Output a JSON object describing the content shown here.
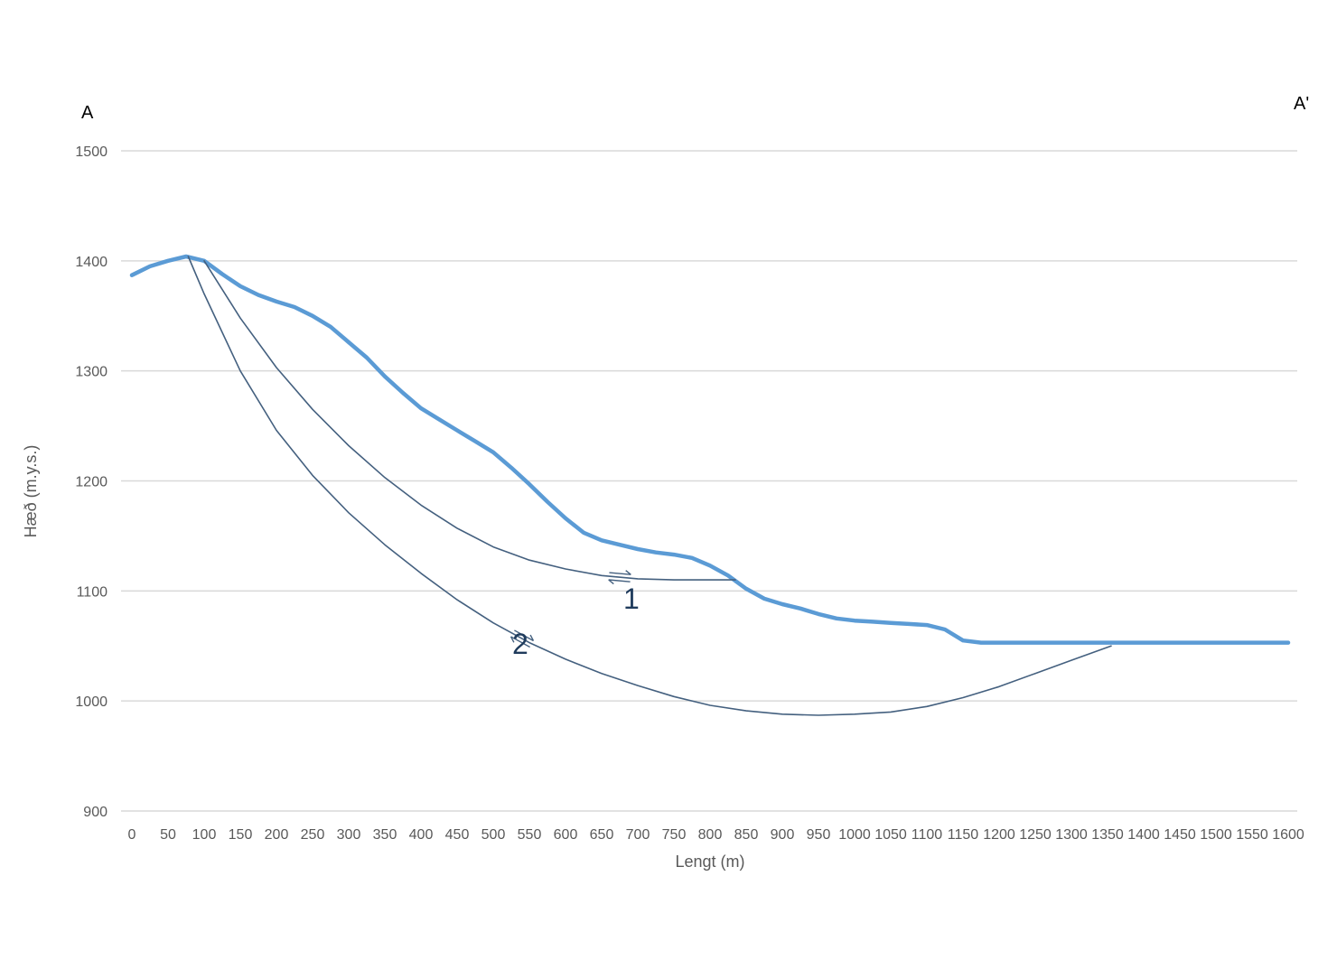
{
  "chart_data": {
    "type": "line",
    "xlabel": "Lengt (m)",
    "ylabel": "Hæð (m.y.s.)",
    "xlim": [
      0,
      1600
    ],
    "ylim": [
      900,
      1500
    ],
    "x_ticks": [
      "0",
      "50",
      "100",
      "150",
      "200",
      "250",
      "300",
      "350",
      "400",
      "450",
      "500",
      "550",
      "600",
      "650",
      "700",
      "750",
      "800",
      "850",
      "900",
      "950",
      "1000",
      "1050",
      "1100",
      "1150",
      "1200",
      "1250",
      "1300",
      "1350",
      "1400",
      "1450",
      "1500",
      "1550",
      "1600"
    ],
    "y_ticks": [
      "900",
      "1000",
      "1100",
      "1200",
      "1300",
      "1400",
      "1500"
    ],
    "grid": true,
    "corner_labels": {
      "left": "A",
      "right": "A'"
    },
    "colors": {
      "profile": "#5b9bd5",
      "slip": "#44607f",
      "grid": "#d9d9d9",
      "text": "#595959"
    },
    "series": [
      {
        "x": [
          0,
          25,
          50,
          75,
          100,
          125,
          150,
          175,
          200,
          225,
          250,
          275,
          300,
          325,
          350,
          375,
          400,
          425,
          450,
          475,
          500,
          525,
          550,
          575,
          600,
          625,
          650,
          675,
          700,
          725,
          750,
          775,
          800,
          825,
          850,
          875,
          900,
          925,
          950,
          975,
          1000,
          1025,
          1050,
          1075,
          1100,
          1125,
          1150,
          1175,
          1200,
          1300,
          1400,
          1500,
          1600
        ],
        "y": [
          1387,
          1395,
          1400,
          1404,
          1400,
          1388,
          1377,
          1369,
          1363,
          1358,
          1350,
          1340,
          1326,
          1312,
          1295,
          1280,
          1266,
          1256,
          1246,
          1236,
          1226,
          1212,
          1197,
          1181,
          1166,
          1153,
          1146,
          1142,
          1138,
          1135,
          1133,
          1130,
          1123,
          1114,
          1102,
          1093,
          1088,
          1084,
          1079,
          1075,
          1073,
          1072,
          1071,
          1070,
          1069,
          1065,
          1055,
          1053,
          1053,
          1053,
          1053,
          1053,
          1053
        ]
      },
      {
        "name": "1",
        "x": [
          100,
          150,
          200,
          250,
          300,
          350,
          400,
          450,
          500,
          550,
          600,
          650,
          700,
          750,
          800,
          835
        ],
        "y": [
          1400,
          1348,
          1303,
          1265,
          1232,
          1203,
          1178,
          1157,
          1140,
          1128,
          1120,
          1114,
          1111,
          1110,
          1110,
          1110
        ]
      },
      {
        "name": "2",
        "x": [
          78,
          100,
          150,
          200,
          250,
          300,
          350,
          400,
          450,
          500,
          550,
          600,
          650,
          700,
          750,
          800,
          850,
          900,
          950,
          1000,
          1050,
          1100,
          1150,
          1200,
          1250,
          1300,
          1355
        ],
        "y": [
          1404,
          1370,
          1300,
          1246,
          1205,
          1171,
          1142,
          1116,
          1092,
          1071,
          1053,
          1038,
          1025,
          1014,
          1004,
          996,
          991,
          988,
          987,
          988,
          990,
          995,
          1003,
          1013,
          1025,
          1037,
          1050
        ]
      }
    ]
  }
}
